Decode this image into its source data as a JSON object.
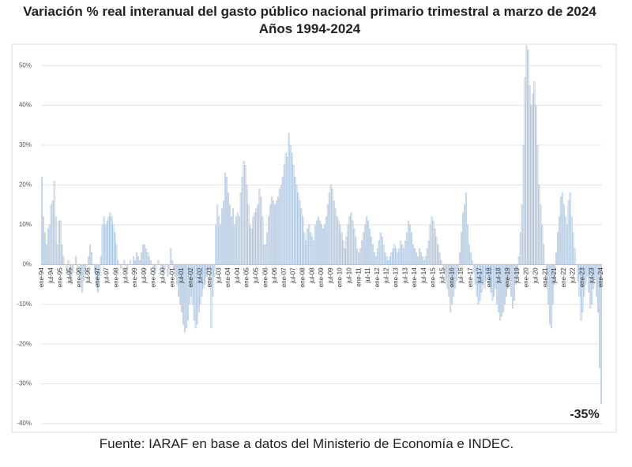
{
  "chart_data": {
    "type": "bar",
    "title": "Variación %  real interanual del gasto público nacional primario trimestral a marzo de 2024",
    "subtitle": "Años 1994-2024",
    "source": "Fuente: IARAF en base a datos del Ministerio de Economía e INDEC.",
    "annotation": "-35%",
    "color": "#dbe6f2",
    "edge_color": "#9fb9d6",
    "grid": true,
    "ylim": [
      -40,
      55
    ],
    "yticks": [
      {
        "value": -40,
        "label": "-40%"
      },
      {
        "value": -30,
        "label": "-30%"
      },
      {
        "value": -20,
        "label": "-20%"
      },
      {
        "value": -10,
        "label": "-10%"
      },
      {
        "value": 0,
        "label": "0%"
      },
      {
        "value": 10,
        "label": "10%"
      },
      {
        "value": 20,
        "label": "20%"
      },
      {
        "value": 30,
        "label": "30%"
      },
      {
        "value": 40,
        "label": "40%"
      },
      {
        "value": 50,
        "label": "50%"
      }
    ],
    "categories": [
      "ene-94",
      null,
      null,
      null,
      null,
      null,
      "jul-94",
      null,
      null,
      null,
      null,
      null,
      "ene-95",
      null,
      null,
      null,
      null,
      null,
      "jul-95",
      null,
      null,
      null,
      null,
      null,
      "ene-96",
      null,
      null,
      null,
      null,
      null,
      "jul-96",
      null,
      null,
      null,
      null,
      null,
      "ene-97",
      null,
      null,
      null,
      null,
      null,
      "jul-97",
      null,
      null,
      null,
      null,
      null,
      "ene-98",
      null,
      null,
      null,
      null,
      null,
      "jul-98",
      null,
      null,
      null,
      null,
      null,
      "ene-99",
      null,
      null,
      null,
      null,
      null,
      "jul-99",
      null,
      null,
      null,
      null,
      null,
      "ene-00",
      null,
      null,
      null,
      null,
      null,
      "jul-00",
      null,
      null,
      null,
      null,
      null,
      "ene-01",
      null,
      null,
      null,
      null,
      null,
      "jul-01",
      null,
      null,
      null,
      null,
      null,
      "ene-02",
      null,
      null,
      null,
      null,
      null,
      "jul-02",
      null,
      null,
      null,
      null,
      null,
      "ene-03",
      null,
      null,
      null,
      null,
      null,
      "jul-03",
      null,
      null,
      null,
      null,
      null,
      "ene-04",
      null,
      null,
      null,
      null,
      null,
      "jul-04",
      null,
      null,
      null,
      null,
      null,
      "ene-05",
      null,
      null,
      null,
      null,
      null,
      "jul-05",
      null,
      null,
      null,
      null,
      null,
      "ene-06",
      null,
      null,
      null,
      null,
      null,
      "jul-06",
      null,
      null,
      null,
      null,
      null,
      "ene-07",
      null,
      null,
      null,
      null,
      null,
      "jul-07",
      null,
      null,
      null,
      null,
      null,
      "ene-08",
      null,
      null,
      null,
      null,
      null,
      "jul-08",
      null,
      null,
      null,
      null,
      null,
      "ene-09",
      null,
      null,
      null,
      null,
      null,
      "jul-09",
      null,
      null,
      null,
      null,
      null,
      "ene-10",
      null,
      null,
      null,
      null,
      null,
      "jul-10",
      null,
      null,
      null,
      null,
      null,
      "ene-11",
      null,
      null,
      null,
      null,
      null,
      "jul-11",
      null,
      null,
      null,
      null,
      null,
      "ene-12",
      null,
      null,
      null,
      null,
      null,
      "jul-12",
      null,
      null,
      null,
      null,
      null,
      "ene-13",
      null,
      null,
      null,
      null,
      null,
      "jul-13",
      null,
      null,
      null,
      null,
      null,
      "ene-14",
      null,
      null,
      null,
      null,
      null,
      "jul-14",
      null,
      null,
      null,
      null,
      null,
      "ene-15",
      null,
      null,
      null,
      null,
      null,
      "jul-15",
      null,
      null,
      null,
      null,
      null,
      "ene-16",
      null,
      null,
      null,
      null,
      null,
      "jul-16",
      null,
      null,
      null,
      null,
      null,
      "ene-17",
      null,
      null,
      null,
      null,
      null,
      "jul-17",
      null,
      null,
      null,
      null,
      null,
      "ene-18",
      null,
      null,
      null,
      null,
      null,
      "jul-18",
      null,
      null,
      null,
      null,
      null,
      "ene-19",
      null,
      null,
      null,
      null,
      null,
      "jul-19",
      null,
      null,
      null,
      null,
      null,
      "ene-20",
      null,
      null,
      null,
      null,
      null,
      "jul-20",
      null,
      null,
      null,
      null,
      null,
      "ene-21",
      null,
      null,
      null,
      null,
      null,
      "jul-21",
      null,
      null,
      null,
      null,
      null,
      "ene-22",
      null,
      null,
      null,
      null,
      null,
      "jul-22",
      null,
      null,
      null,
      null,
      null,
      "ene-23",
      null,
      null,
      null,
      null,
      null,
      "jul-23",
      null,
      null,
      null,
      null,
      null,
      "ene-24"
    ],
    "values": [
      22,
      12,
      8,
      5,
      9,
      10,
      15,
      16,
      21,
      12,
      5,
      11,
      11,
      5,
      2,
      0,
      -2,
      1,
      -3,
      -5,
      -2,
      0,
      2,
      -1,
      0,
      -3,
      -7,
      -4,
      -2,
      0,
      2,
      5,
      3,
      0,
      -2,
      -5,
      -7,
      -3,
      2,
      10,
      12,
      10,
      11,
      12,
      13,
      12,
      10,
      8,
      5,
      1,
      0,
      -1,
      0,
      1,
      0,
      -1,
      0,
      1,
      0,
      2,
      1,
      3,
      2,
      1,
      3,
      5,
      5,
      4,
      3,
      2,
      1,
      0,
      -1,
      -2,
      0,
      1,
      0,
      -1,
      -2,
      -1,
      0,
      -3,
      -1,
      4,
      1,
      -1,
      -3,
      -5,
      -8,
      -10,
      -12,
      -15,
      -17,
      -16,
      -14,
      -10,
      -8,
      -10,
      -14,
      -16,
      -15,
      -12,
      -10,
      -8,
      -6,
      -5,
      -3,
      -2,
      -1,
      -16,
      -8,
      -3,
      10,
      15,
      12,
      10,
      14,
      16,
      23,
      22,
      18,
      15,
      12,
      14,
      10,
      12,
      13,
      12,
      18,
      22,
      26,
      25,
      20,
      15,
      10,
      9,
      12,
      13,
      14,
      15,
      19,
      17,
      12,
      5,
      5,
      8,
      12,
      15,
      17,
      16,
      15,
      16,
      17,
      19,
      20,
      22,
      25,
      28,
      27,
      33,
      30,
      28,
      25,
      22,
      20,
      18,
      16,
      14,
      12,
      8,
      6,
      9,
      10,
      8,
      7,
      6,
      10,
      11,
      12,
      11,
      10,
      9,
      10,
      12,
      15,
      18,
      20,
      19,
      16,
      14,
      12,
      11,
      10,
      8,
      6,
      4,
      7,
      10,
      12,
      13,
      11,
      9,
      7,
      4,
      3,
      4,
      6,
      8,
      10,
      12,
      11,
      9,
      7,
      5,
      3,
      2,
      4,
      6,
      8,
      7,
      5,
      3,
      2,
      1,
      2,
      3,
      4,
      5,
      4,
      3,
      4,
      6,
      5,
      4,
      6,
      8,
      11,
      10,
      8,
      5,
      4,
      3,
      2,
      4,
      3,
      2,
      1,
      2,
      4,
      6,
      10,
      12,
      11,
      9,
      7,
      5,
      3,
      1,
      0,
      -2,
      -4,
      -6,
      -8,
      -12,
      -10,
      -8,
      -6,
      -4,
      -2,
      3,
      8,
      13,
      15,
      18,
      10,
      5,
      3,
      1,
      -2,
      -5,
      -8,
      -10,
      -9,
      -7,
      -5,
      -6,
      -4,
      -3,
      -5,
      -7,
      -9,
      -8,
      -6,
      -10,
      -12,
      -14,
      -13,
      -12,
      -10,
      -8,
      -6,
      -4,
      -8,
      -11,
      -9,
      -5,
      -3,
      2,
      8,
      15,
      30,
      47,
      55,
      54,
      45,
      40,
      43,
      46,
      40,
      30,
      20,
      15,
      10,
      5,
      0,
      -5,
      -10,
      -15,
      -16,
      -10,
      -5,
      3,
      8,
      12,
      17,
      18,
      15,
      12,
      10,
      16,
      18,
      12,
      8,
      4,
      0,
      -4,
      -8,
      -14,
      -12,
      -8,
      -5,
      -3,
      -7,
      -11,
      -10,
      -6,
      -4,
      -8,
      -12,
      -26,
      -35
    ]
  }
}
